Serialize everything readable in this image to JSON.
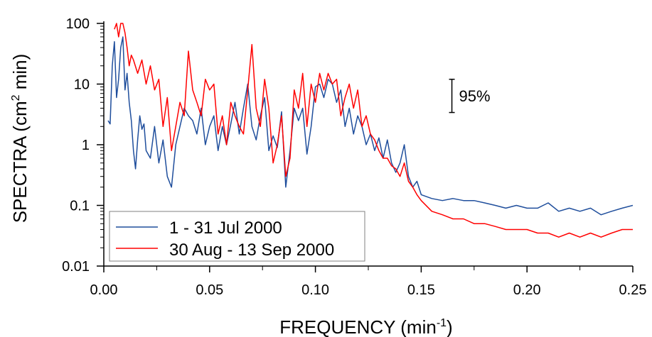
{
  "chart_data": {
    "type": "line",
    "xlabel": "FREQUENCY (min",
    "xlabel_sup": "-1",
    "xlabel_end": ")",
    "ylabel": "SPECTRA (cm",
    "ylabel_sup": "2",
    "ylabel_end": " min)",
    "xlim": [
      0,
      0.25
    ],
    "ylim": [
      0.01,
      100
    ],
    "y_scale": "log",
    "grid": false,
    "legend_position": "bottom-left",
    "x_ticks": [
      {
        "value": 0.0,
        "label": "0.00"
      },
      {
        "value": 0.05,
        "label": "0.05"
      },
      {
        "value": 0.1,
        "label": "0.10"
      },
      {
        "value": 0.15,
        "label": "0.15"
      },
      {
        "value": 0.2,
        "label": "0.20"
      },
      {
        "value": 0.25,
        "label": "0.25"
      }
    ],
    "y_ticks": [
      {
        "value": 0.01,
        "label": "0.01"
      },
      {
        "value": 0.1,
        "label": "0.1"
      },
      {
        "value": 1,
        "label": "1"
      },
      {
        "value": 10,
        "label": "10"
      },
      {
        "value": 100,
        "label": "100"
      }
    ],
    "annotation": {
      "label": "95%",
      "x": 0.1645,
      "y_low": 3.4,
      "y_high": 12
    },
    "series": [
      {
        "name": "1 - 31 Jul 2000",
        "color": "#1f4e9c",
        "x": [
          0.002,
          0.003,
          0.004,
          0.005,
          0.006,
          0.007,
          0.008,
          0.009,
          0.01,
          0.011,
          0.012,
          0.013,
          0.014,
          0.015,
          0.016,
          0.017,
          0.018,
          0.019,
          0.02,
          0.022,
          0.024,
          0.026,
          0.028,
          0.03,
          0.032,
          0.034,
          0.036,
          0.038,
          0.04,
          0.042,
          0.044,
          0.046,
          0.048,
          0.05,
          0.052,
          0.054,
          0.056,
          0.058,
          0.06,
          0.062,
          0.064,
          0.066,
          0.068,
          0.07,
          0.072,
          0.074,
          0.076,
          0.078,
          0.08,
          0.082,
          0.084,
          0.086,
          0.088,
          0.09,
          0.092,
          0.094,
          0.096,
          0.098,
          0.1,
          0.102,
          0.104,
          0.106,
          0.108,
          0.11,
          0.112,
          0.114,
          0.116,
          0.118,
          0.12,
          0.122,
          0.124,
          0.126,
          0.128,
          0.13,
          0.132,
          0.134,
          0.136,
          0.138,
          0.14,
          0.142,
          0.144,
          0.146,
          0.148,
          0.15,
          0.155,
          0.16,
          0.165,
          0.17,
          0.175,
          0.18,
          0.185,
          0.19,
          0.195,
          0.2,
          0.205,
          0.21,
          0.215,
          0.22,
          0.225,
          0.23,
          0.235,
          0.24,
          0.245,
          0.25
        ],
        "y": [
          2.5,
          2.2,
          20,
          50,
          6,
          12,
          40,
          60,
          8,
          15,
          5,
          2.5,
          0.8,
          0.4,
          1.2,
          3,
          1.8,
          2.2,
          0.8,
          0.6,
          2,
          0.5,
          1.2,
          0.3,
          0.2,
          1,
          2,
          4,
          3,
          2.5,
          1.5,
          4,
          1,
          2,
          3,
          0.8,
          2,
          1,
          2.2,
          5,
          1.5,
          4,
          10,
          2,
          1.2,
          3,
          6,
          0.8,
          1.4,
          0.9,
          3.5,
          0.2,
          0.8,
          4,
          2.5,
          4,
          0.7,
          2,
          9,
          10,
          6,
          12,
          10,
          5,
          8,
          2,
          4,
          1.5,
          3,
          2,
          1,
          1.5,
          0.8,
          1.3,
          0.6,
          1.2,
          0.5,
          0.35,
          0.5,
          1,
          0.3,
          0.2,
          0.25,
          0.15,
          0.13,
          0.12,
          0.13,
          0.12,
          0.12,
          0.11,
          0.1,
          0.09,
          0.1,
          0.09,
          0.09,
          0.11,
          0.08,
          0.09,
          0.08,
          0.09,
          0.07,
          0.08,
          0.09,
          0.1
        ]
      },
      {
        "name": "30 Aug - 13 Sep 2000",
        "color": "#ff0000",
        "x": [
          0.005,
          0.006,
          0.007,
          0.008,
          0.009,
          0.01,
          0.011,
          0.012,
          0.013,
          0.014,
          0.016,
          0.018,
          0.02,
          0.022,
          0.024,
          0.026,
          0.028,
          0.03,
          0.032,
          0.034,
          0.036,
          0.038,
          0.04,
          0.042,
          0.044,
          0.046,
          0.048,
          0.05,
          0.052,
          0.054,
          0.056,
          0.058,
          0.06,
          0.062,
          0.064,
          0.066,
          0.068,
          0.07,
          0.072,
          0.074,
          0.076,
          0.078,
          0.08,
          0.082,
          0.084,
          0.086,
          0.088,
          0.09,
          0.092,
          0.094,
          0.096,
          0.098,
          0.1,
          0.102,
          0.104,
          0.106,
          0.108,
          0.11,
          0.112,
          0.114,
          0.116,
          0.118,
          0.12,
          0.122,
          0.124,
          0.126,
          0.128,
          0.13,
          0.132,
          0.134,
          0.136,
          0.138,
          0.14,
          0.142,
          0.144,
          0.146,
          0.148,
          0.15,
          0.155,
          0.16,
          0.165,
          0.17,
          0.175,
          0.18,
          0.185,
          0.19,
          0.195,
          0.2,
          0.205,
          0.21,
          0.215,
          0.22,
          0.225,
          0.23,
          0.235,
          0.24,
          0.245,
          0.25
        ],
        "y": [
          80,
          140,
          60,
          100,
          160,
          70,
          40,
          20,
          30,
          25,
          15,
          25,
          10,
          20,
          8,
          12,
          2,
          6,
          0.8,
          2,
          5,
          3,
          35,
          8,
          5,
          3,
          12,
          8,
          10,
          1.5,
          3,
          1,
          5,
          3,
          2,
          1.5,
          8,
          45,
          4,
          2,
          12,
          4,
          0.5,
          1,
          3,
          0.3,
          0.6,
          8,
          4,
          15,
          2,
          10,
          5,
          15,
          8,
          15,
          10,
          12,
          3,
          6,
          10,
          4,
          8,
          2,
          3,
          1.5,
          1.2,
          0.8,
          0.6,
          0.6,
          0.45,
          0.4,
          0.3,
          0.5,
          0.25,
          0.2,
          0.15,
          0.12,
          0.08,
          0.07,
          0.06,
          0.06,
          0.05,
          0.05,
          0.045,
          0.04,
          0.04,
          0.04,
          0.035,
          0.035,
          0.03,
          0.035,
          0.03,
          0.035,
          0.03,
          0.035,
          0.04,
          0.04
        ]
      }
    ]
  }
}
